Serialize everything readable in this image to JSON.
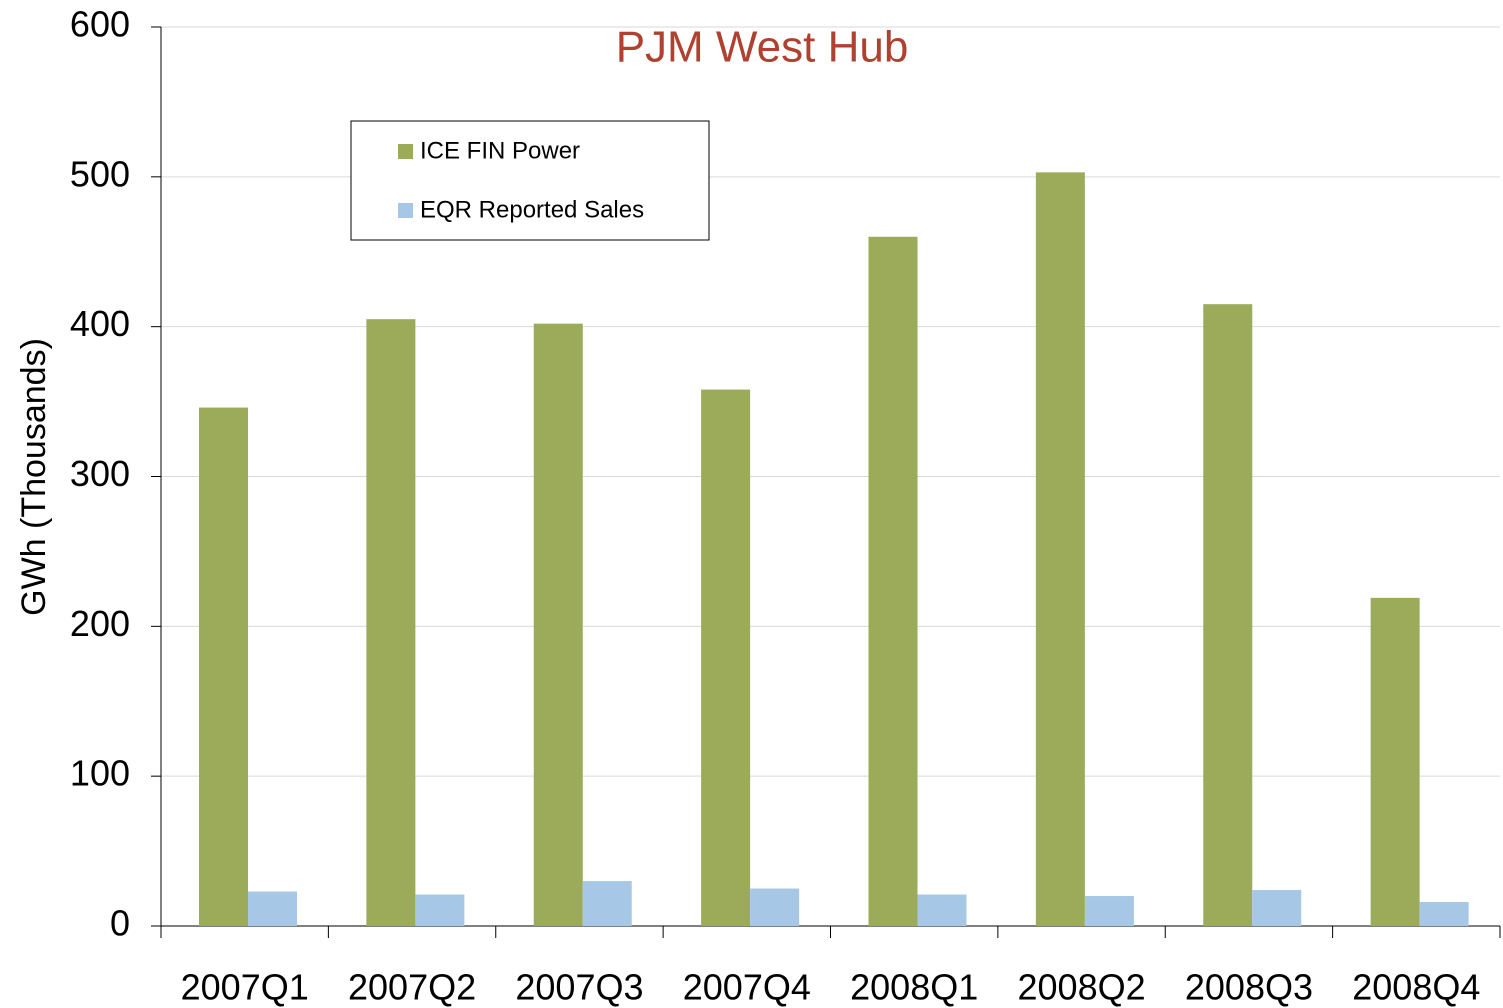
{
  "chart_data": {
    "type": "bar",
    "title": "PJM West Hub",
    "ylabel": "GWh (Thousands)",
    "categories": [
      "2007Q1",
      "2007Q2",
      "2007Q3",
      "2007Q4",
      "2008Q1",
      "2008Q2",
      "2008Q3",
      "2008Q4"
    ],
    "series": [
      {
        "name": "ICE FIN Power",
        "color": "#9bab59",
        "values": [
          346,
          405,
          402,
          358,
          460,
          503,
          415,
          219
        ]
      },
      {
        "name": "EQR Reported Sales",
        "color": "#a6c8e6",
        "values": [
          23,
          21,
          30,
          25,
          21,
          20,
          24,
          16
        ]
      }
    ],
    "ylim": [
      0,
      600
    ],
    "yticks": [
      0,
      100,
      200,
      300,
      400,
      500,
      600
    ],
    "grid": true
  }
}
